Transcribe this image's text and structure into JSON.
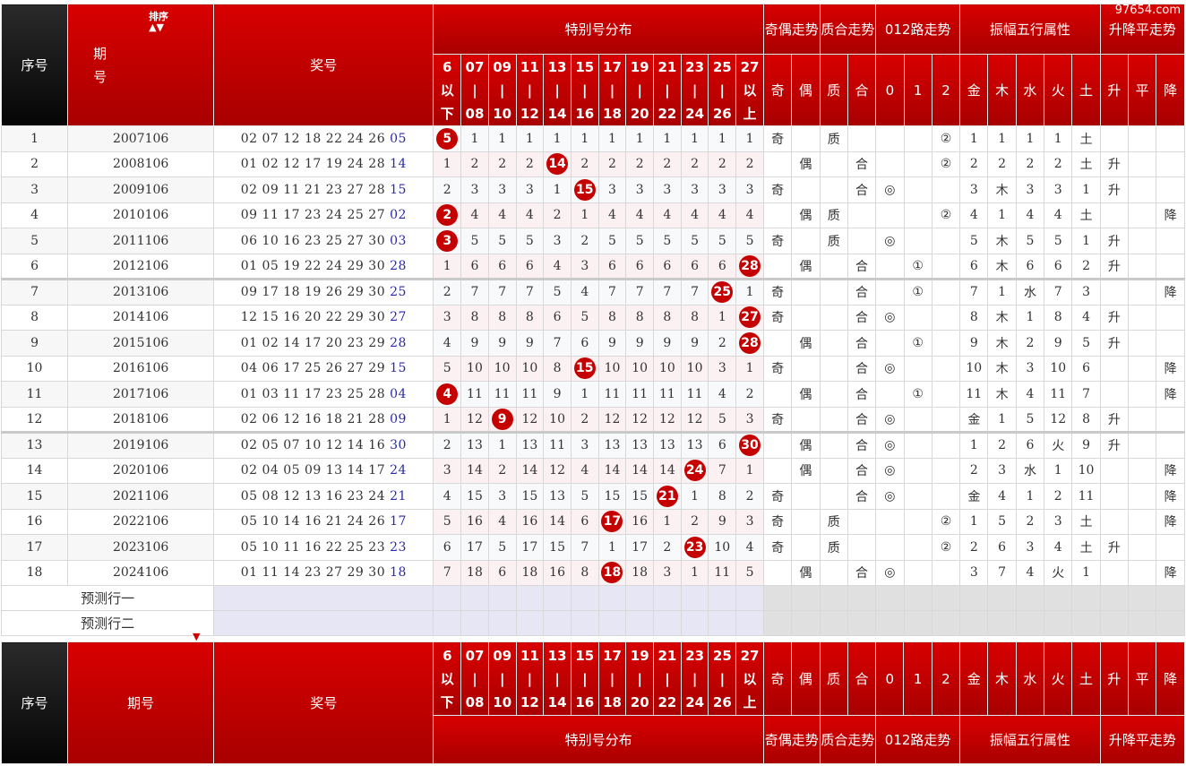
{
  "watermark": "97654.com",
  "headers": {
    "seq": "序号",
    "period_a": "期",
    "period_b": "号",
    "period": "期号",
    "sort": "排序",
    "numbers": "奖号",
    "special_dist": "特别号分布",
    "odd_even": "奇偶走势",
    "prime_comp": "质合走势",
    "road012": "012路走势",
    "amplitude_wx": "振幅五行属性",
    "trend": "升降平走势",
    "ranges": [
      [
        "6",
        "以",
        "下"
      ],
      [
        "07",
        "|",
        "08"
      ],
      [
        "09",
        "|",
        "10"
      ],
      [
        "11",
        "|",
        "12"
      ],
      [
        "13",
        "|",
        "14"
      ],
      [
        "15",
        "|",
        "16"
      ],
      [
        "17",
        "|",
        "18"
      ],
      [
        "19",
        "|",
        "20"
      ],
      [
        "21",
        "|",
        "22"
      ],
      [
        "23",
        "|",
        "24"
      ],
      [
        "25",
        "|",
        "26"
      ],
      [
        "27",
        "以",
        "上"
      ]
    ],
    "sub": [
      "奇",
      "偶",
      "质",
      "合",
      "0",
      "1",
      "2",
      "金",
      "木",
      "水",
      "火",
      "土",
      "升",
      "平",
      "降"
    ]
  },
  "rows": [
    {
      "seq": "1",
      "period": "2007106",
      "main": "02 07 12 18 22 24 26",
      "special": "05",
      "cells": [
        "5",
        "1",
        "1",
        "1",
        "1",
        "1",
        "1",
        "1",
        "1",
        "1",
        "1",
        "1"
      ],
      "hit": 0,
      "oe": "奇",
      "oe_col": 0,
      "pc": "质",
      "pc_col": 0,
      "road": "②",
      "road_col": 2,
      "amp": [
        "1",
        "1",
        "1",
        "1",
        "土"
      ],
      "amp_hit": 4,
      "tr": "",
      "tr_col": -1
    },
    {
      "seq": "2",
      "period": "2008106",
      "main": "01 02 12 17 19 24 28",
      "special": "14",
      "cells": [
        "1",
        "2",
        "2",
        "2",
        "14",
        "2",
        "2",
        "2",
        "2",
        "2",
        "2",
        "2"
      ],
      "hit": 4,
      "oe": "偶",
      "oe_col": 1,
      "pc": "合",
      "pc_col": 1,
      "road": "②",
      "road_col": 2,
      "amp": [
        "2",
        "2",
        "2",
        "2",
        "土"
      ],
      "amp_hit": 4,
      "tr": "升",
      "tr_col": 0
    },
    {
      "seq": "3",
      "period": "2009106",
      "main": "02 09 11 21 23 27 28",
      "special": "15",
      "cells": [
        "2",
        "3",
        "3",
        "3",
        "1",
        "15",
        "3",
        "3",
        "3",
        "3",
        "3",
        "3"
      ],
      "hit": 5,
      "oe": "奇",
      "oe_col": 0,
      "pc": "合",
      "pc_col": 1,
      "road": "◎",
      "road_col": 0,
      "amp": [
        "3",
        "木",
        "3",
        "3",
        "1"
      ],
      "amp_hit": 1,
      "tr": "升",
      "tr_col": 0
    },
    {
      "seq": "4",
      "period": "2010106",
      "main": "09 11 17 23 24 25 27",
      "special": "02",
      "cells": [
        "2",
        "4",
        "4",
        "4",
        "2",
        "1",
        "4",
        "4",
        "4",
        "4",
        "4",
        "4"
      ],
      "hit": 0,
      "oe": "偶",
      "oe_col": 1,
      "pc": "质",
      "pc_col": 0,
      "road": "②",
      "road_col": 2,
      "amp": [
        "4",
        "1",
        "4",
        "4",
        "土"
      ],
      "amp_hit": 4,
      "tr": "降",
      "tr_col": 2
    },
    {
      "seq": "5",
      "period": "2011106",
      "main": "06 10 16 23 25 27 30",
      "special": "03",
      "cells": [
        "3",
        "5",
        "5",
        "5",
        "3",
        "2",
        "5",
        "5",
        "5",
        "5",
        "5",
        "5"
      ],
      "hit": 0,
      "oe": "奇",
      "oe_col": 0,
      "pc": "质",
      "pc_col": 0,
      "road": "◎",
      "road_col": 0,
      "amp": [
        "5",
        "木",
        "5",
        "5",
        "1"
      ],
      "amp_hit": 1,
      "tr": "升",
      "tr_col": 0
    },
    {
      "seq": "6",
      "period": "2012106",
      "main": "01 05 19 22 24 29 30",
      "special": "28",
      "cells": [
        "1",
        "6",
        "6",
        "6",
        "4",
        "3",
        "6",
        "6",
        "6",
        "6",
        "6",
        "28"
      ],
      "hit": 11,
      "oe": "偶",
      "oe_col": 1,
      "pc": "合",
      "pc_col": 1,
      "road": "①",
      "road_col": 1,
      "amp": [
        "6",
        "木",
        "6",
        "6",
        "2"
      ],
      "amp_hit": 1,
      "tr": "升",
      "tr_col": 0
    },
    {
      "seq": "7",
      "period": "2013106",
      "main": "09 17 18 19 26 29 30",
      "special": "25",
      "cells": [
        "2",
        "7",
        "7",
        "7",
        "5",
        "4",
        "7",
        "7",
        "7",
        "7",
        "25",
        "1"
      ],
      "hit": 10,
      "oe": "奇",
      "oe_col": 0,
      "pc": "合",
      "pc_col": 1,
      "road": "①",
      "road_col": 1,
      "amp": [
        "7",
        "1",
        "水",
        "7",
        "3"
      ],
      "amp_hit": 2,
      "tr": "降",
      "tr_col": 2
    },
    {
      "seq": "8",
      "period": "2014106",
      "main": "12 15 16 20 22 29 30",
      "special": "27",
      "cells": [
        "3",
        "8",
        "8",
        "8",
        "6",
        "5",
        "8",
        "8",
        "8",
        "8",
        "1",
        "27"
      ],
      "hit": 11,
      "oe": "奇",
      "oe_col": 0,
      "pc": "合",
      "pc_col": 1,
      "road": "◎",
      "road_col": 0,
      "amp": [
        "8",
        "木",
        "1",
        "8",
        "4"
      ],
      "amp_hit": 1,
      "tr": "升",
      "tr_col": 0
    },
    {
      "seq": "9",
      "period": "2015106",
      "main": "01 02 14 17 20 23 29",
      "special": "28",
      "cells": [
        "4",
        "9",
        "9",
        "9",
        "7",
        "6",
        "9",
        "9",
        "9",
        "9",
        "2",
        "28"
      ],
      "hit": 11,
      "oe": "偶",
      "oe_col": 1,
      "pc": "合",
      "pc_col": 1,
      "road": "①",
      "road_col": 1,
      "amp": [
        "9",
        "木",
        "2",
        "9",
        "5"
      ],
      "amp_hit": 1,
      "tr": "升",
      "tr_col": 0
    },
    {
      "seq": "10",
      "period": "2016106",
      "main": "04 06 17 25 26 27 29",
      "special": "15",
      "cells": [
        "5",
        "10",
        "10",
        "10",
        "8",
        "15",
        "10",
        "10",
        "10",
        "10",
        "3",
        "1"
      ],
      "hit": 5,
      "oe": "奇",
      "oe_col": 0,
      "pc": "合",
      "pc_col": 1,
      "road": "◎",
      "road_col": 0,
      "amp": [
        "10",
        "木",
        "3",
        "10",
        "6"
      ],
      "amp_hit": 1,
      "tr": "降",
      "tr_col": 2
    },
    {
      "seq": "11",
      "period": "2017106",
      "main": "01 03 11 17 23 25 28",
      "special": "04",
      "cells": [
        "4",
        "11",
        "11",
        "11",
        "9",
        "1",
        "11",
        "11",
        "11",
        "11",
        "4",
        "2"
      ],
      "hit": 0,
      "oe": "偶",
      "oe_col": 1,
      "pc": "合",
      "pc_col": 1,
      "road": "①",
      "road_col": 1,
      "amp": [
        "11",
        "木",
        "4",
        "11",
        "7"
      ],
      "amp_hit": 1,
      "tr": "降",
      "tr_col": 2
    },
    {
      "seq": "12",
      "period": "2018106",
      "main": "02 06 12 16 18 21 28",
      "special": "09",
      "cells": [
        "1",
        "12",
        "9",
        "12",
        "10",
        "2",
        "12",
        "12",
        "12",
        "12",
        "5",
        "3"
      ],
      "hit": 2,
      "oe": "奇",
      "oe_col": 0,
      "pc": "合",
      "pc_col": 1,
      "road": "◎",
      "road_col": 0,
      "amp": [
        "金",
        "1",
        "5",
        "12",
        "8"
      ],
      "amp_hit": 0,
      "tr": "升",
      "tr_col": 0
    },
    {
      "seq": "13",
      "period": "2019106",
      "main": "02 05 07 10 12 14 16",
      "special": "30",
      "cells": [
        "2",
        "13",
        "1",
        "13",
        "11",
        "3",
        "13",
        "13",
        "13",
        "13",
        "6",
        "30"
      ],
      "hit": 11,
      "oe": "偶",
      "oe_col": 1,
      "pc": "合",
      "pc_col": 1,
      "road": "◎",
      "road_col": 0,
      "amp": [
        "1",
        "2",
        "6",
        "火",
        "9"
      ],
      "amp_hit": 3,
      "tr": "升",
      "tr_col": 0
    },
    {
      "seq": "14",
      "period": "2020106",
      "main": "02 04 05 09 13 14 17",
      "special": "24",
      "cells": [
        "3",
        "14",
        "2",
        "14",
        "12",
        "4",
        "14",
        "14",
        "14",
        "24",
        "7",
        "1"
      ],
      "hit": 9,
      "oe": "偶",
      "oe_col": 1,
      "pc": "合",
      "pc_col": 1,
      "road": "◎",
      "road_col": 0,
      "amp": [
        "2",
        "3",
        "水",
        "1",
        "10"
      ],
      "amp_hit": 2,
      "tr": "降",
      "tr_col": 2
    },
    {
      "seq": "15",
      "period": "2021106",
      "main": "05 08 12 13 16 23 24",
      "special": "21",
      "cells": [
        "4",
        "15",
        "3",
        "15",
        "13",
        "5",
        "15",
        "15",
        "21",
        "1",
        "8",
        "2"
      ],
      "hit": 8,
      "oe": "奇",
      "oe_col": 0,
      "pc": "合",
      "pc_col": 1,
      "road": "◎",
      "road_col": 0,
      "amp": [
        "金",
        "4",
        "1",
        "2",
        "11"
      ],
      "amp_hit": 0,
      "tr": "降",
      "tr_col": 2
    },
    {
      "seq": "16",
      "period": "2022106",
      "main": "05 10 14 16 21 24 26",
      "special": "17",
      "cells": [
        "5",
        "16",
        "4",
        "16",
        "14",
        "6",
        "17",
        "16",
        "1",
        "2",
        "9",
        "3"
      ],
      "hit": 6,
      "oe": "奇",
      "oe_col": 0,
      "pc": "质",
      "pc_col": 0,
      "road": "②",
      "road_col": 2,
      "amp": [
        "1",
        "5",
        "2",
        "3",
        "土"
      ],
      "amp_hit": 4,
      "tr": "降",
      "tr_col": 2
    },
    {
      "seq": "17",
      "period": "2023106",
      "main": "05 10 11 16 22 25 23",
      "special": "23",
      "cells": [
        "6",
        "17",
        "5",
        "17",
        "15",
        "7",
        "1",
        "17",
        "2",
        "23",
        "10",
        "4"
      ],
      "hit": 9,
      "oe": "奇",
      "oe_col": 0,
      "pc": "质",
      "pc_col": 0,
      "road": "②",
      "road_col": 2,
      "amp": [
        "2",
        "6",
        "3",
        "4",
        "土"
      ],
      "amp_hit": 4,
      "tr": "升",
      "tr_col": 0
    },
    {
      "seq": "18",
      "period": "2024106",
      "main": "01 11 14 23 27 29 30",
      "special": "18",
      "cells": [
        "7",
        "18",
        "6",
        "18",
        "16",
        "8",
        "18",
        "18",
        "3",
        "1",
        "11",
        "5"
      ],
      "hit": 6,
      "oe": "偶",
      "oe_col": 1,
      "pc": "合",
      "pc_col": 1,
      "road": "◎",
      "road_col": 0,
      "amp": [
        "3",
        "7",
        "4",
        "火",
        "1"
      ],
      "amp_hit": 3,
      "tr": "降",
      "tr_col": 2
    }
  ],
  "predict": [
    "预测行一",
    "预测行二"
  ]
}
